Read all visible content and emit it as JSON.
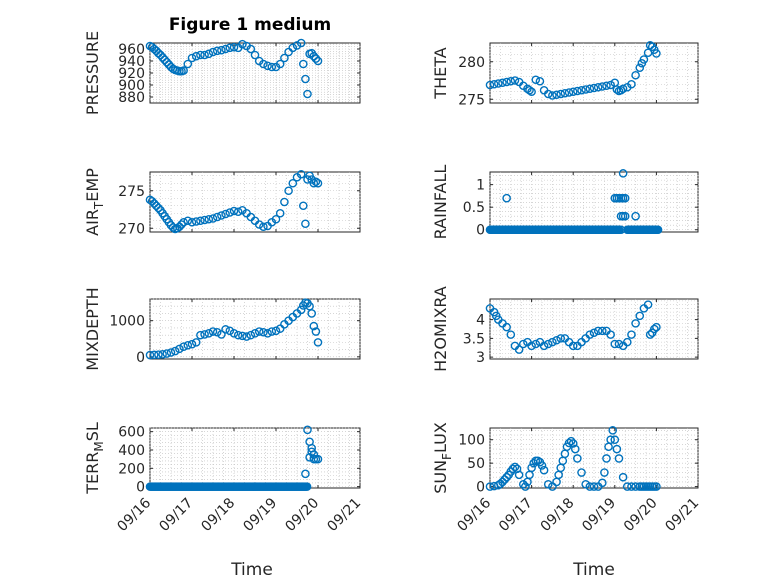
{
  "figure": {
    "title": "Figure 1 medium",
    "xlabel": "Time"
  },
  "colors": {
    "marker": "#0072BD",
    "axis": "#262626",
    "grid": "#bdbdbd"
  },
  "chart_data": [
    {
      "id": "pressure",
      "type": "scatter",
      "title": "Figure 1 medium",
      "ylabel": "PRESSURE",
      "ylim": [
        870,
        970
      ],
      "yticks": [
        880,
        900,
        920,
        940,
        960
      ],
      "xlim": [
        0,
        5
      ],
      "xticks": [
        "09/16",
        "09/17",
        "09/18",
        "09/19",
        "09/20",
        "09/21"
      ],
      "show_xticklabels": false,
      "grid": true,
      "x": [
        0.0,
        0.05,
        0.1,
        0.15,
        0.2,
        0.25,
        0.3,
        0.35,
        0.4,
        0.45,
        0.5,
        0.55,
        0.6,
        0.65,
        0.7,
        0.75,
        0.8,
        0.9,
        1.0,
        1.1,
        1.2,
        1.3,
        1.4,
        1.5,
        1.6,
        1.7,
        1.8,
        1.9,
        2.0,
        2.1,
        2.2,
        2.3,
        2.4,
        2.5,
        2.6,
        2.7,
        2.8,
        2.9,
        3.0,
        3.1,
        3.2,
        3.3,
        3.4,
        3.5,
        3.6,
        3.65,
        3.7,
        3.75,
        3.8,
        3.85,
        3.9,
        3.95,
        4.0
      ],
      "y": [
        965,
        963,
        960,
        957,
        953,
        950,
        946,
        942,
        938,
        934,
        930,
        927,
        925,
        924,
        923,
        923,
        924,
        935,
        945,
        948,
        950,
        950,
        952,
        955,
        957,
        958,
        960,
        962,
        963,
        962,
        968,
        965,
        960,
        950,
        940,
        935,
        932,
        930,
        930,
        935,
        945,
        955,
        962,
        966,
        970,
        935,
        910,
        885,
        952,
        953,
        948,
        944,
        940
      ]
    },
    {
      "id": "theta",
      "type": "scatter",
      "ylabel": "THETA",
      "ylim": [
        274.5,
        282.5
      ],
      "yticks": [
        275,
        280
      ],
      "xlim": [
        0,
        5
      ],
      "xticks": [
        "09/16",
        "09/17",
        "09/18",
        "09/19",
        "09/20",
        "09/21"
      ],
      "show_xticklabels": false,
      "grid": true,
      "x": [
        0.0,
        0.1,
        0.2,
        0.3,
        0.4,
        0.5,
        0.6,
        0.7,
        0.8,
        0.9,
        0.95,
        1.0,
        1.1,
        1.2,
        1.3,
        1.4,
        1.5,
        1.6,
        1.7,
        1.8,
        1.9,
        2.0,
        2.1,
        2.2,
        2.3,
        2.4,
        2.5,
        2.6,
        2.7,
        2.8,
        2.9,
        3.0,
        3.05,
        3.1,
        3.15,
        3.2,
        3.3,
        3.4,
        3.5,
        3.6,
        3.65,
        3.7,
        3.8,
        3.85,
        3.9,
        3.95,
        4.0
      ],
      "y": [
        276.9,
        277.0,
        277.1,
        277.2,
        277.3,
        277.4,
        277.5,
        277.3,
        276.8,
        276.4,
        276.2,
        276.0,
        277.6,
        277.4,
        276.2,
        275.7,
        275.5,
        275.6,
        275.7,
        275.8,
        275.9,
        276.0,
        276.1,
        276.2,
        276.3,
        276.4,
        276.5,
        276.6,
        276.7,
        276.8,
        276.9,
        277.2,
        276.3,
        276.1,
        276.2,
        276.4,
        276.6,
        277.0,
        278.2,
        279.2,
        279.8,
        280.3,
        281.2,
        282.2,
        282.0,
        281.6,
        281.1
      ]
    },
    {
      "id": "air_temp",
      "type": "scatter",
      "ylabel_parts": [
        "AIR",
        "T",
        "EMP"
      ],
      "ylim": [
        269.5,
        277.5
      ],
      "yticks": [
        270,
        275
      ],
      "xlim": [
        0,
        5
      ],
      "xticks": [
        "09/16",
        "09/17",
        "09/18",
        "09/19",
        "09/20",
        "09/21"
      ],
      "show_xticklabels": false,
      "grid": true,
      "x": [
        0.0,
        0.05,
        0.1,
        0.15,
        0.2,
        0.25,
        0.3,
        0.35,
        0.4,
        0.45,
        0.5,
        0.55,
        0.6,
        0.65,
        0.7,
        0.75,
        0.8,
        0.9,
        1.0,
        1.1,
        1.2,
        1.3,
        1.4,
        1.5,
        1.6,
        1.7,
        1.8,
        1.9,
        2.0,
        2.1,
        2.2,
        2.3,
        2.4,
        2.5,
        2.6,
        2.7,
        2.8,
        2.9,
        3.0,
        3.1,
        3.2,
        3.3,
        3.4,
        3.5,
        3.6,
        3.65,
        3.7,
        3.75,
        3.8,
        3.85,
        3.9,
        3.95,
        4.0
      ],
      "y": [
        273.8,
        273.6,
        273.3,
        273.0,
        272.7,
        272.4,
        272.0,
        271.6,
        271.2,
        270.8,
        270.4,
        270.1,
        269.9,
        270.0,
        270.2,
        270.5,
        270.8,
        271.0,
        270.8,
        270.9,
        271.0,
        271.1,
        271.2,
        271.3,
        271.5,
        271.7,
        271.9,
        272.1,
        272.3,
        272.2,
        272.4,
        272.0,
        271.5,
        271.0,
        270.5,
        270.2,
        270.3,
        270.8,
        271.2,
        272.0,
        273.5,
        275.0,
        276.0,
        276.8,
        277.2,
        273.0,
        270.6,
        276.5,
        277.0,
        276.5,
        276.0,
        276.2,
        276.0
      ]
    },
    {
      "id": "rainfall",
      "type": "scatter",
      "ylabel": "RAINFALL",
      "ylim": [
        -0.05,
        1.28
      ],
      "yticks": [
        0,
        0.5,
        1
      ],
      "yticklabels": [
        "0",
        "0.5",
        "1"
      ],
      "xlim": [
        0,
        5
      ],
      "xticks": [
        "09/16",
        "09/17",
        "09/18",
        "09/19",
        "09/20",
        "09/21"
      ],
      "show_xticklabels": false,
      "grid": true,
      "x": [
        0.4,
        3.0,
        3.05,
        3.1,
        3.15,
        3.2,
        3.25,
        3.15,
        3.2,
        3.25,
        3.2,
        3.5,
        3.1,
        3.15,
        3.9
      ],
      "y": [
        0.7,
        0.7,
        0.7,
        0.7,
        0.7,
        0.7,
        0.7,
        0.3,
        0.3,
        0.3,
        1.25,
        0.3,
        0,
        0,
        0
      ],
      "zero_run": [
        [
          0.0,
          3.1
        ],
        [
          3.3,
          4.05
        ]
      ]
    },
    {
      "id": "mixdepth",
      "type": "scatter",
      "ylabel": "MIXDEPTH",
      "ylim": [
        -60,
        1600
      ],
      "yticks": [
        0,
        1000
      ],
      "xlim": [
        0,
        5
      ],
      "xticks": [
        "09/16",
        "09/17",
        "09/18",
        "09/19",
        "09/20",
        "09/21"
      ],
      "show_xticklabels": false,
      "grid": true,
      "x": [
        0.0,
        0.1,
        0.2,
        0.3,
        0.4,
        0.5,
        0.6,
        0.7,
        0.8,
        0.9,
        1.0,
        1.1,
        1.2,
        1.3,
        1.4,
        1.5,
        1.6,
        1.7,
        1.8,
        1.9,
        2.0,
        2.1,
        2.2,
        2.3,
        2.4,
        2.5,
        2.6,
        2.7,
        2.8,
        2.9,
        3.0,
        3.1,
        3.2,
        3.3,
        3.4,
        3.5,
        3.6,
        3.65,
        3.7,
        3.75,
        3.8,
        3.85,
        3.9,
        3.95,
        4.0
      ],
      "y": [
        50,
        55,
        60,
        70,
        90,
        120,
        160,
        220,
        280,
        320,
        350,
        400,
        600,
        620,
        650,
        700,
        680,
        620,
        760,
        720,
        650,
        600,
        580,
        560,
        600,
        650,
        700,
        680,
        650,
        700,
        720,
        780,
        900,
        1000,
        1100,
        1200,
        1300,
        1420,
        1500,
        1480,
        1400,
        1200,
        850,
        700,
        400
      ]
    },
    {
      "id": "h2omixra",
      "type": "scatter",
      "ylabel": "H2OMIXRA",
      "ylim": [
        2.95,
        4.55
      ],
      "yticks": [
        3,
        3.5,
        4
      ],
      "yticklabels": [
        "3",
        "3.5",
        "4"
      ],
      "xlim": [
        0,
        5
      ],
      "xticks": [
        "09/16",
        "09/17",
        "09/18",
        "09/19",
        "09/20",
        "09/21"
      ],
      "show_xticklabels": false,
      "grid": true,
      "x": [
        0.0,
        0.1,
        0.15,
        0.2,
        0.3,
        0.4,
        0.5,
        0.6,
        0.7,
        0.8,
        0.9,
        1.0,
        1.1,
        1.2,
        1.3,
        1.4,
        1.5,
        1.6,
        1.7,
        1.8,
        1.9,
        2.0,
        2.1,
        2.2,
        2.3,
        2.4,
        2.5,
        2.6,
        2.7,
        2.8,
        2.9,
        3.0,
        3.1,
        3.2,
        3.3,
        3.4,
        3.5,
        3.6,
        3.7,
        3.8,
        3.85,
        3.9,
        3.95,
        4.0
      ],
      "y": [
        4.3,
        4.2,
        4.1,
        4.0,
        3.9,
        3.8,
        3.6,
        3.3,
        3.2,
        3.35,
        3.4,
        3.3,
        3.35,
        3.4,
        3.3,
        3.35,
        3.4,
        3.45,
        3.5,
        3.5,
        3.4,
        3.3,
        3.3,
        3.4,
        3.5,
        3.6,
        3.65,
        3.7,
        3.7,
        3.7,
        3.6,
        3.35,
        3.35,
        3.3,
        3.4,
        3.6,
        3.9,
        4.1,
        4.3,
        4.4,
        3.6,
        3.65,
        3.75,
        3.8
      ]
    },
    {
      "id": "terr_msl",
      "type": "scatter",
      "ylabel_parts": [
        "TERR",
        "M",
        "SL"
      ],
      "ylim": [
        -15,
        640
      ],
      "yticks": [
        0,
        200,
        400,
        600
      ],
      "xlim": [
        0,
        5
      ],
      "xticks": [
        "09/16",
        "09/17",
        "09/18",
        "09/19",
        "09/20",
        "09/21"
      ],
      "show_xticklabels": true,
      "xlabel": "Time",
      "grid": true,
      "x": [
        3.7,
        3.75,
        3.8,
        3.85,
        3.9,
        3.95,
        4.0,
        3.8,
        3.85,
        3.9
      ],
      "y": [
        140,
        620,
        490,
        420,
        350,
        300,
        300,
        320,
        380,
        300
      ],
      "zero_run": [
        [
          0.0,
          3.75
        ]
      ]
    },
    {
      "id": "sun_flux",
      "type": "scatter",
      "ylabel_parts": [
        "SUN",
        "F",
        "LUX"
      ],
      "ylim": [
        -3,
        125
      ],
      "yticks": [
        0,
        50,
        100
      ],
      "xlim": [
        0,
        5
      ],
      "xticks": [
        "09/16",
        "09/17",
        "09/18",
        "09/19",
        "09/20",
        "09/21"
      ],
      "show_xticklabels": true,
      "xlabel": "Time",
      "grid": true,
      "x": [
        0.0,
        0.1,
        0.2,
        0.25,
        0.3,
        0.35,
        0.4,
        0.45,
        0.5,
        0.55,
        0.6,
        0.65,
        0.7,
        0.8,
        0.85,
        0.9,
        0.95,
        1.0,
        1.05,
        1.1,
        1.15,
        1.2,
        1.25,
        1.3,
        1.4,
        1.5,
        1.6,
        1.65,
        1.7,
        1.75,
        1.8,
        1.85,
        1.9,
        1.95,
        2.0,
        2.05,
        2.1,
        2.2,
        2.3,
        2.4,
        2.5,
        2.6,
        2.7,
        2.75,
        2.8,
        2.85,
        2.9,
        2.95,
        3.0,
        3.05,
        3.1,
        3.2,
        3.3,
        3.4,
        3.5,
        3.6,
        3.65,
        3.7,
        3.75,
        3.8,
        3.85,
        3.9,
        3.95,
        4.0
      ],
      "y": [
        0,
        1,
        3,
        6,
        10,
        15,
        20,
        25,
        32,
        38,
        42,
        38,
        25,
        5,
        0,
        10,
        25,
        40,
        50,
        55,
        55,
        52,
        45,
        35,
        5,
        0,
        10,
        25,
        40,
        55,
        70,
        85,
        93,
        97,
        92,
        80,
        60,
        30,
        5,
        0,
        0,
        0,
        8,
        30,
        60,
        85,
        100,
        120,
        100,
        80,
        60,
        20,
        0,
        0,
        0,
        0,
        0,
        0,
        0,
        0,
        0,
        0,
        0,
        0
      ]
    }
  ]
}
